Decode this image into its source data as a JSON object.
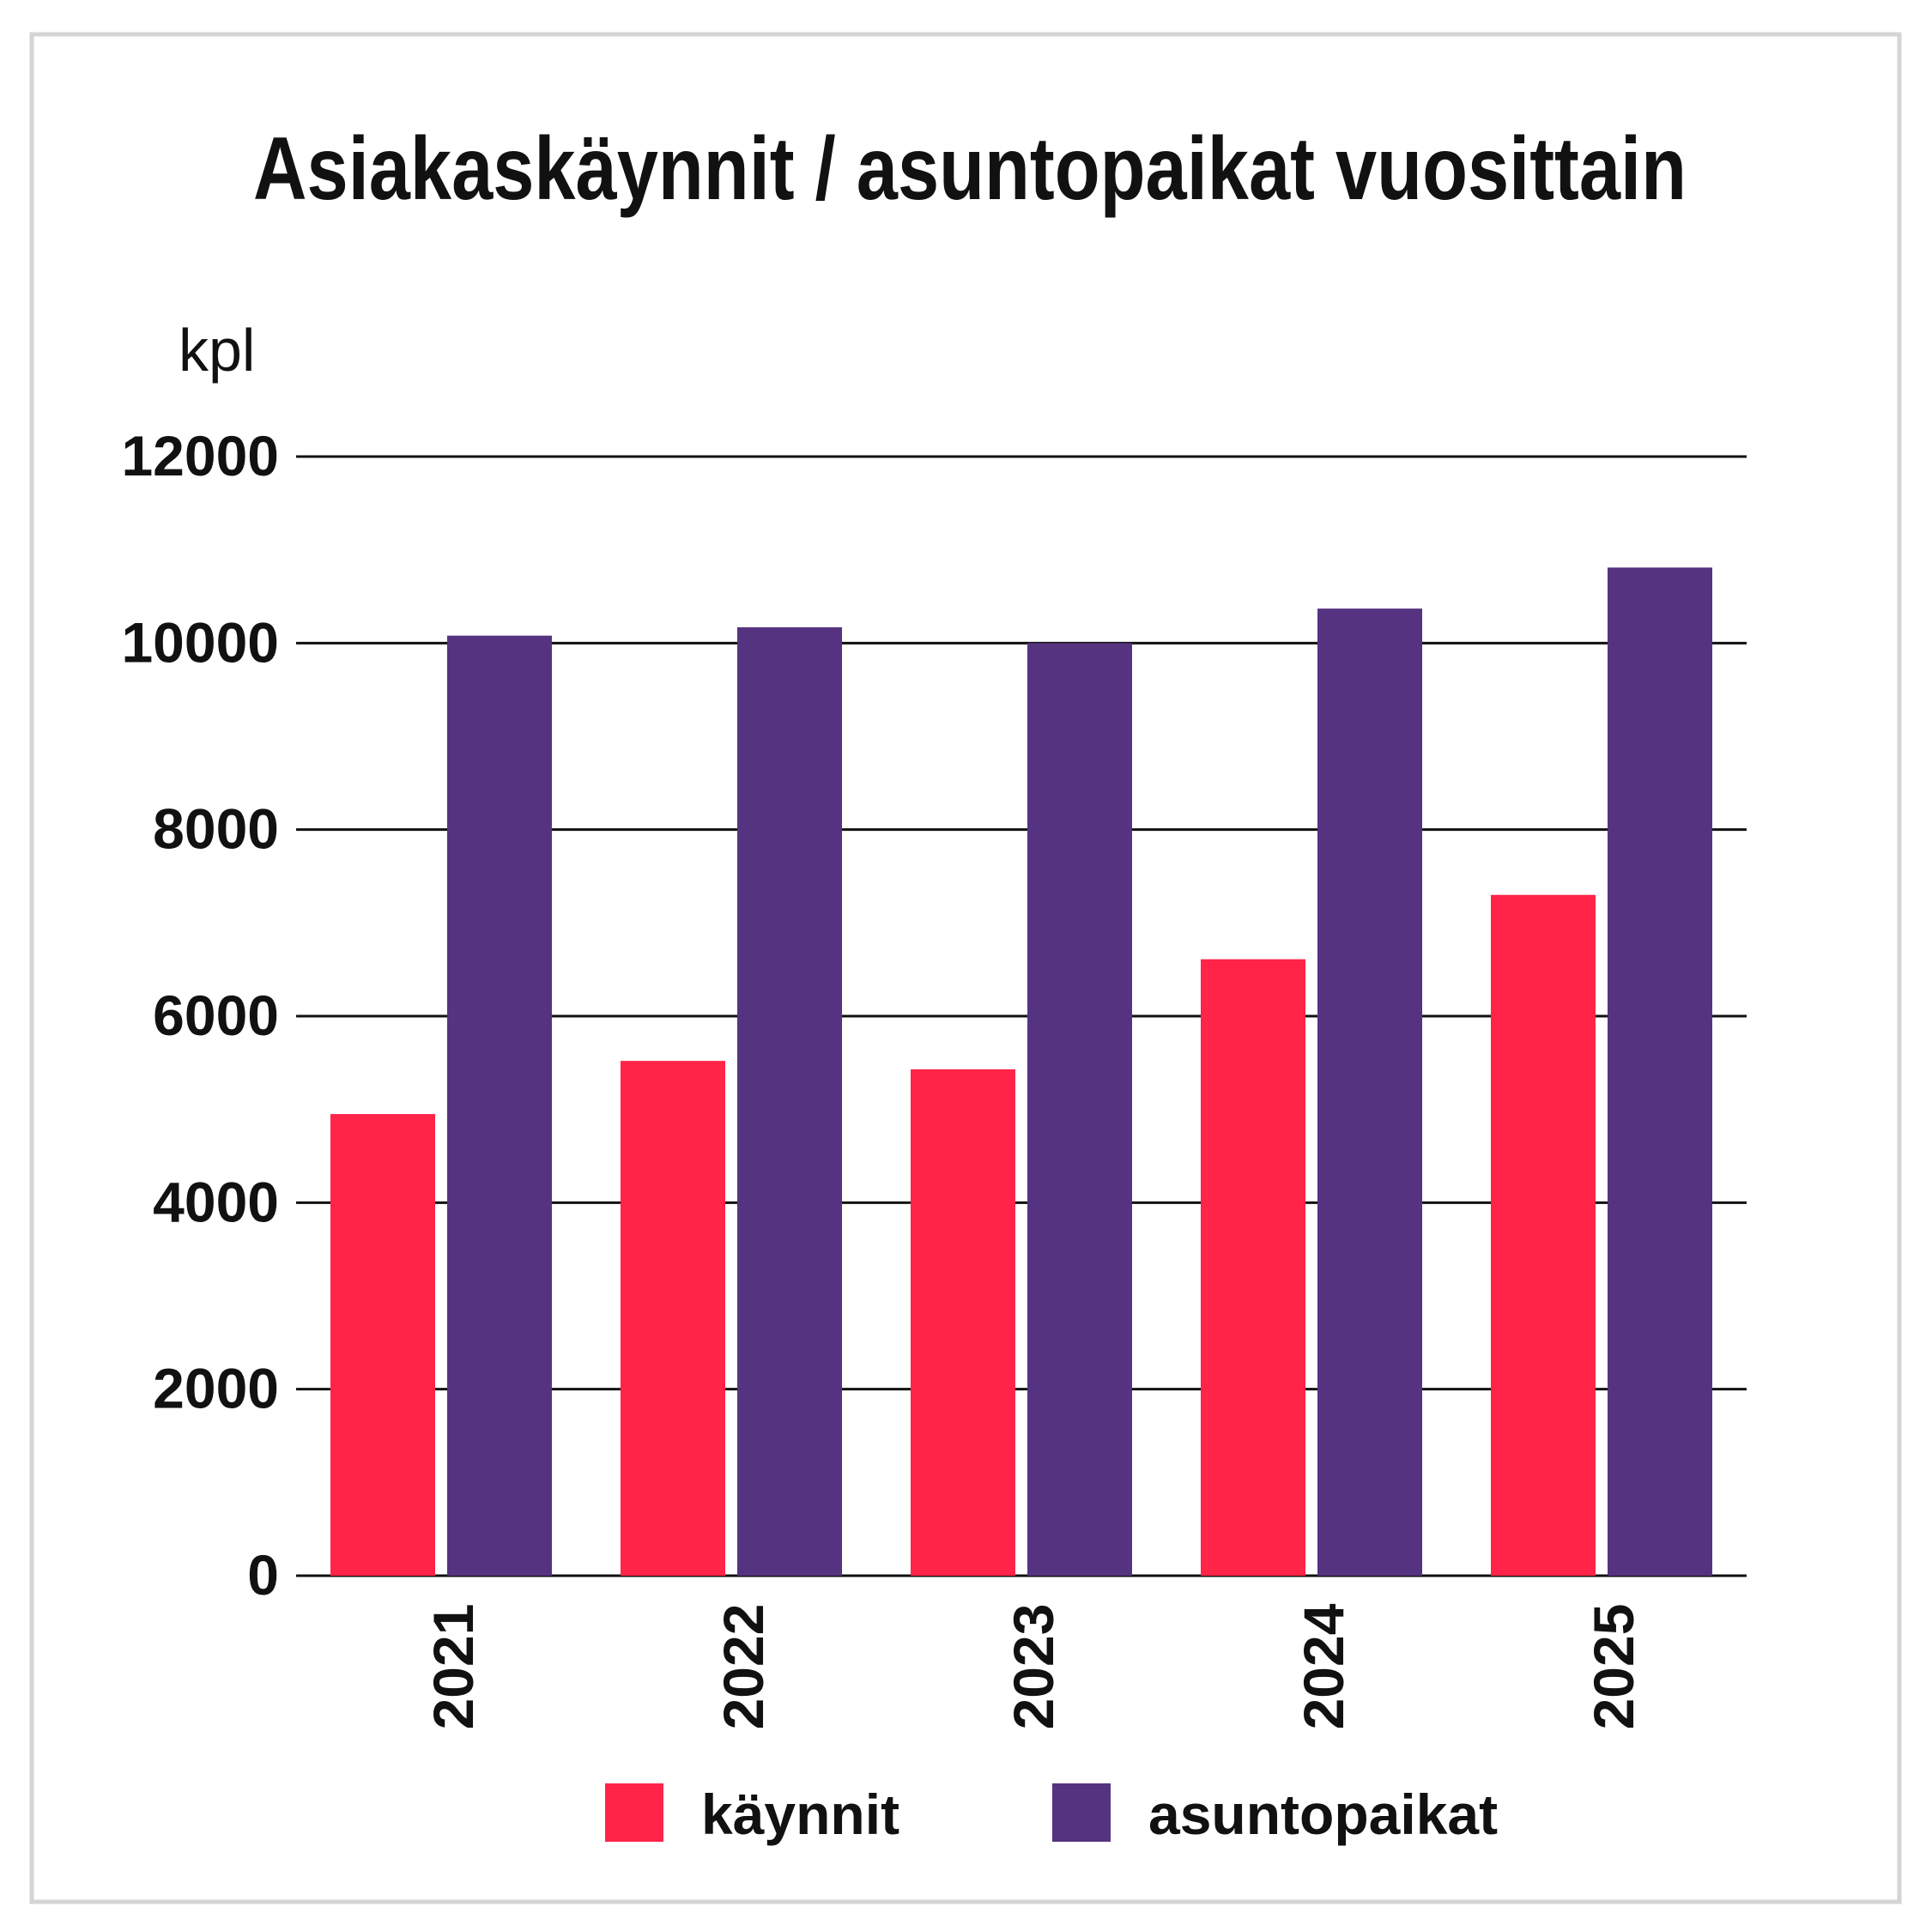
{
  "chart_data": {
    "type": "bar",
    "title": "Asiakaskäynnit / asuntopaikat vuosittain",
    "ylabel": "kpl",
    "xlabel": "",
    "categories": [
      "2021",
      "2022",
      "2023",
      "2024",
      "2025"
    ],
    "series": [
      {
        "name": "käynnit",
        "color": "#ff2448",
        "values": [
          4950,
          5520,
          5430,
          6610,
          7300
        ]
      },
      {
        "name": "asuntopaikat",
        "color": "#553380",
        "values": [
          10080,
          10170,
          10000,
          10370,
          10810
        ]
      }
    ],
    "ylim": [
      0,
      12000
    ],
    "yticks": [
      "0",
      "2000",
      "4000",
      "6000",
      "8000",
      "10000",
      "12000"
    ],
    "grid": true,
    "legend_position": "bottom"
  },
  "colors": {
    "frame": "#d4d4d4",
    "gridline": "#111111",
    "text": "#111111"
  }
}
